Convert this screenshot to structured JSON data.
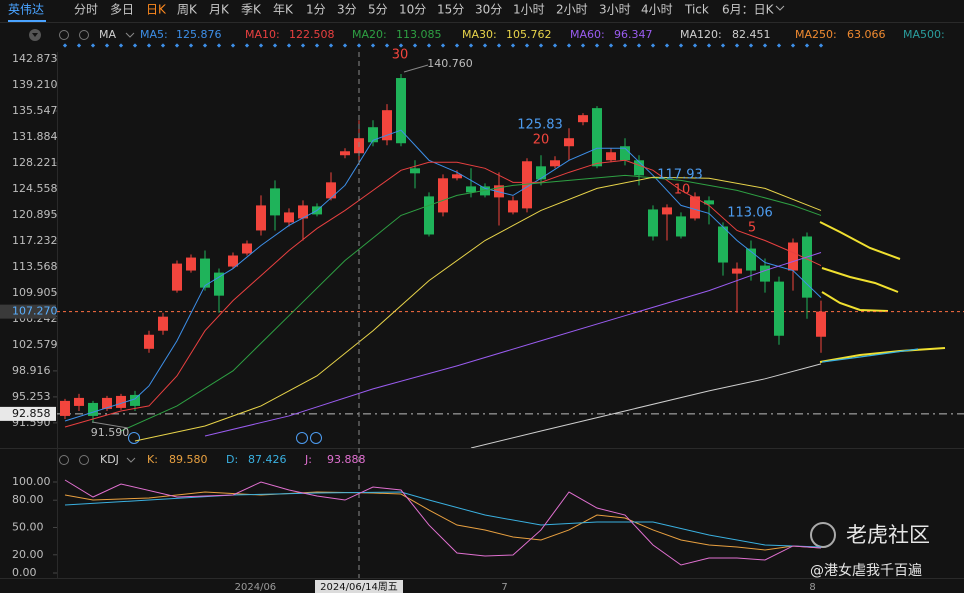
{
  "toolbar": {
    "symbol": "英伟达",
    "tabs": [
      "分时",
      "多日",
      "日K",
      "周K",
      "月K",
      "季K",
      "年K",
      "1分",
      "3分",
      "5分",
      "10分",
      "15分",
      "30分",
      "1小时",
      "2小时",
      "3小时",
      "4小时",
      "Tick",
      "6月：日K"
    ],
    "active_tab": 2
  },
  "chart_data": [
    {
      "type": "candlestick",
      "indicator": "MA",
      "ylim": [
        88.05,
        143.86
      ],
      "yticks": [
        142.873,
        {
          "value": 139.21,
          "label": "139.210"
        },
        135.547,
        131.884,
        128.221,
        124.558,
        120.895,
        117.232,
        113.568,
        109.905,
        106.242,
        102.579,
        98.916,
        95.253,
        {
          "value": 91.59,
          "label": "91.590"
        }
      ],
      "grid": false,
      "up_color": "#f2453d",
      "down_color": "#1fb35a",
      "open": [
        92.57,
        93.98,
        94.4,
        93.56,
        93.7,
        95.53,
        102.03,
        104.58,
        110.23,
        113.06,
        114.75,
        112.77,
        113.62,
        115.46,
        118.71,
        124.64,
        119.84,
        120.4,
        122.1,
        123.23,
        129.31,
        129.59,
        133.26,
        131.42,
        140.19,
        127.47,
        123.51,
        121.25,
        126.06,
        124.92,
        124.92,
        123.37,
        121.25,
        121.82,
        127.75,
        127.75,
        130.58,
        133.97,
        135.95,
        128.6,
        130.58,
        128.6,
        121.67,
        120.97,
        120.69,
        120.4,
        122.95,
        119.27,
        112.63,
        116.16,
        113.76,
        111.5,
        113.06,
        117.86,
        103.73
      ],
      "high": [
        94.97,
        95.68,
        94.69,
        95.39,
        95.68,
        96.1,
        104.58,
        107.12,
        114.47,
        115.32,
        115.88,
        113.34,
        115.6,
        117.29,
        123.65,
        125.77,
        121.82,
        122.95,
        122.52,
        126.9,
        130.29,
        134.25,
        134.25,
        136.51,
        140.76,
        128.6,
        124.08,
        126.62,
        127.19,
        127.47,
        125.35,
        126.9,
        123.51,
        128.88,
        129.31,
        129.16,
        133.12,
        135.24,
        136.23,
        130.29,
        131.71,
        129.31,
        122.24,
        122.38,
        121.25,
        124.08,
        123.51,
        119.84,
        114.19,
        117.29,
        114.75,
        112.21,
        117.58,
        118.43,
        108.82
      ],
      "low": [
        92.14,
        93.27,
        91.59,
        93.27,
        93.42,
        93.27,
        101.47,
        104.01,
        109.95,
        112.77,
        110.23,
        107.12,
        113.34,
        115.18,
        118.0,
        118.71,
        119.27,
        117.29,
        120.69,
        122.95,
        128.88,
        128.6,
        130.58,
        130.72,
        130.58,
        124.64,
        117.86,
        120.69,
        125.77,
        123.37,
        123.37,
        119.41,
        120.97,
        121.25,
        125.07,
        127.47,
        128.6,
        133.54,
        127.47,
        128.32,
        127.89,
        125.07,
        117.29,
        117.29,
        117.58,
        120.12,
        119.56,
        112.35,
        107.12,
        111.64,
        109.95,
        102.6,
        110.23,
        106.27,
        101.47
      ],
      "close": [
        94.69,
        95.11,
        92.57,
        95.11,
        95.39,
        93.98,
        104.01,
        106.56,
        114.04,
        114.89,
        110.65,
        109.52,
        115.18,
        116.87,
        122.24,
        120.83,
        121.25,
        122.24,
        120.97,
        125.49,
        129.87,
        131.71,
        131.14,
        135.66,
        131.0,
        126.76,
        118.14,
        126.06,
        126.62,
        124.08,
        123.65,
        125.07,
        122.95,
        128.46,
        125.91,
        128.6,
        131.71,
        134.96,
        127.75,
        129.73,
        128.6,
        126.48,
        117.86,
        121.96,
        117.86,
        123.51,
        122.38,
        114.19,
        113.34,
        113.06,
        111.5,
        103.87,
        117.01,
        109.24,
        107.27
      ],
      "series": [
        {
          "name": "MA5:",
          "color": "#3d8fe8",
          "legend_value": 125.876,
          "x": [
            1,
            6,
            7,
            9,
            11,
            13,
            15,
            17,
            19,
            21,
            23,
            25,
            27,
            29,
            31,
            33,
            35,
            37,
            39,
            41,
            43,
            45,
            47,
            49,
            51,
            53,
            55
          ],
          "values": [
            91.86,
            94.97,
            96.81,
            103.16,
            110.94,
            113.34,
            116.59,
            119.41,
            121.53,
            125.07,
            131.42,
            132.84,
            128.6,
            126.9,
            124.64,
            123.65,
            126.06,
            128.6,
            130.29,
            130.29,
            126.48,
            122.24,
            121.11,
            117.29,
            114.19,
            113.06,
            109.24
          ]
        },
        {
          "name": "MA10:",
          "color": "#e84040",
          "legend_value": 122.508,
          "x": [
            1,
            5,
            7,
            9,
            11,
            13,
            15,
            17,
            19,
            21,
            23,
            25,
            27,
            29,
            31,
            33,
            35,
            37,
            39,
            41,
            43,
            45,
            47,
            49,
            51,
            53,
            55
          ],
          "values": [
            91.01,
            93.27,
            93.98,
            98.22,
            104.58,
            108.82,
            112.35,
            115.88,
            118.99,
            121.53,
            124.36,
            127.19,
            128.32,
            128.32,
            127.47,
            125.49,
            125.49,
            126.9,
            128.17,
            128.6,
            127.19,
            124.36,
            122.24,
            118.71,
            117.29,
            115.6,
            113.76
          ]
        },
        {
          "name": "MA20:",
          "color": "#2ea043",
          "legend_value": 113.085,
          "x": [
            5,
            9,
            13,
            17,
            21,
            25,
            29,
            33,
            37,
            41,
            45,
            49,
            53,
            55
          ],
          "values": [
            90.45,
            93.98,
            98.93,
            106.7,
            114.47,
            120.83,
            123.65,
            125.07,
            125.77,
            126.48,
            125.77,
            124.36,
            122.24,
            120.83
          ]
        },
        {
          "name": "MA30:",
          "color": "#e8d44a",
          "legend_value": 105.762,
          "x": [
            6,
            11,
            15,
            19,
            23,
            27,
            31,
            35,
            39,
            43,
            47,
            51,
            55
          ],
          "values": [
            89.03,
            91.15,
            93.98,
            98.22,
            104.58,
            111.64,
            117.29,
            121.53,
            124.64,
            126.2,
            126.06,
            124.64,
            121.53
          ]
        },
        {
          "name": "MA60:",
          "color": "#9a5cf0",
          "legend_value": 96.347,
          "x": [
            11,
            17,
            23,
            29,
            35,
            41,
            47,
            51,
            55
          ],
          "values": [
            89.74,
            92.57,
            96.38,
            99.63,
            103.16,
            106.7,
            110.23,
            113.06,
            115.6
          ]
        },
        {
          "name": "MA120:",
          "color": "#cfcfcf",
          "legend_value": 82.451,
          "x": [
            30,
            35,
            41,
            47,
            51,
            55
          ],
          "values": [
            88.05,
            90.45,
            93.27,
            96.1,
            97.8,
            99.91
          ]
        },
        {
          "name": "MA250:",
          "color": "#f08a30",
          "legend_value": 63.066,
          "x": [],
          "values": []
        },
        {
          "name": "MA500:",
          "color": "#2a9d9d",
          "x": [],
          "values": []
        }
      ],
      "hlines": [
        {
          "value": 107.27,
          "label": "107.270",
          "color": "#ff7043"
        },
        {
          "value": 92.858,
          "color": "#bdbdbd"
        }
      ],
      "annotations": [
        {
          "text": "30",
          "color": "#f2453d"
        },
        {
          "text": "140.760",
          "color": "#bdbdbd"
        },
        {
          "text": "125.83",
          "color": "#4d9cf0"
        },
        {
          "text": "20",
          "color": "#f2453d"
        },
        {
          "text": "117.93",
          "color": "#4d9cf0"
        },
        {
          "text": "10",
          "color": "#f2453d"
        },
        {
          "text": "113.06",
          "color": "#4d9cf0"
        },
        {
          "text": "5",
          "color": "#f2453d"
        },
        {
          "text": "91.590",
          "color": "#bdbdbd"
        }
      ],
      "x_labels": [
        {
          "x": 14.6,
          "label": "2024/06"
        },
        {
          "x": 32.4,
          "label": "7"
        },
        {
          "x": 54.4,
          "label": "8"
        }
      ],
      "cursor": {
        "x": 22,
        "label": "2024/06/14周五"
      }
    },
    {
      "type": "line",
      "indicator": "KDJ",
      "ylim": [
        0,
        100
      ],
      "yticks": [
        {
          "value": 100,
          "label": "100.00"
        },
        {
          "value": 80,
          "label": "80.00"
        },
        {
          "value": 50,
          "label": "50.00"
        },
        {
          "value": 20,
          "label": "20.00"
        },
        {
          "value": 0,
          "label": "0.00"
        }
      ],
      "series": [
        {
          "name": "K:",
          "color": "#e8a040",
          "legend_value": 89.58,
          "legend_label": "89.580",
          "x": [
            1,
            3,
            7,
            11,
            15,
            19,
            23,
            25,
            27,
            29,
            31,
            33,
            35,
            37,
            39,
            41,
            43,
            45,
            47,
            49,
            51,
            53,
            55
          ],
          "values": [
            85.7,
            80.2,
            82.4,
            89.0,
            85.7,
            89.0,
            87.9,
            86.8,
            69.2,
            52.7,
            47.3,
            39.6,
            36.3,
            47.3,
            63.7,
            60.4,
            47.3,
            36.3,
            30.8,
            28.6,
            25.3,
            29.7,
            27.5
          ]
        },
        {
          "name": "D:",
          "color": "#3ab0e0",
          "legend_value": 87.426,
          "x": [
            1,
            7,
            13,
            19,
            25,
            27,
            31,
            35,
            39,
            43,
            47,
            51,
            55
          ],
          "values": [
            74.7,
            80.2,
            85.7,
            87.9,
            89.0,
            80.2,
            63.7,
            52.7,
            56.0,
            56.0,
            41.8,
            30.8,
            28.6
          ]
        },
        {
          "name": "J:",
          "color": "#e070d0",
          "legend_value": 93.888,
          "x": [
            1,
            3,
            5,
            9,
            13,
            15,
            17,
            19,
            21,
            23,
            25,
            27,
            29,
            31,
            33,
            35,
            37,
            39,
            41,
            43,
            45,
            47,
            49,
            51,
            53,
            55
          ],
          "values": [
            102.2,
            83.5,
            97.8,
            83.5,
            85.7,
            100,
            91.2,
            84.6,
            80.2,
            94.5,
            91.2,
            52.7,
            22.0,
            18.7,
            19.8,
            47.3,
            89.0,
            71.4,
            63.7,
            30.8,
            8.8,
            16.5,
            16.5,
            14.3,
            29.7,
            27.5
          ]
        }
      ]
    }
  ],
  "watermark": {
    "brand": "老虎社区",
    "author": "@港女虐我千百遍"
  }
}
